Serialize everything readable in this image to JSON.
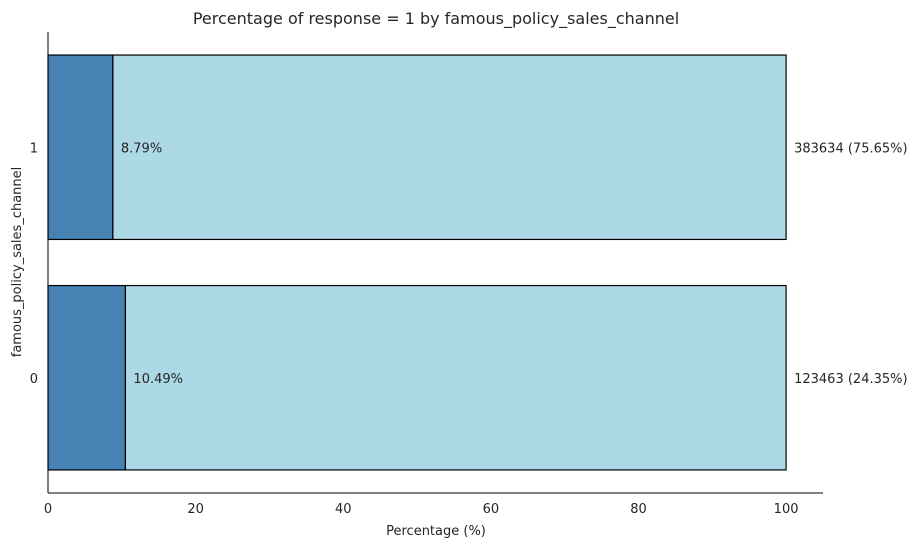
{
  "chart_data": {
    "type": "bar",
    "orientation": "horizontal",
    "stacked": true,
    "title": "Percentage of response = 1 by famous_policy_sales_channel",
    "xlabel": "Percentage (%)",
    "ylabel": "famous_policy_sales_channel",
    "xlim": [
      0,
      105
    ],
    "xticks": [
      "0",
      "20",
      "40",
      "60",
      "80",
      "100"
    ],
    "grid": false,
    "categories": [
      "1",
      "0"
    ],
    "series": [
      {
        "values": [
          8.79,
          10.49
        ],
        "color": "#4682b4"
      },
      {
        "values": [
          91.21,
          89.51
        ],
        "color": "#add8e6"
      }
    ],
    "percent_labels": [
      "8.79%",
      "10.49%"
    ],
    "count_labels": [
      "383634 (75.65%)",
      "123463 (24.35%)"
    ]
  }
}
